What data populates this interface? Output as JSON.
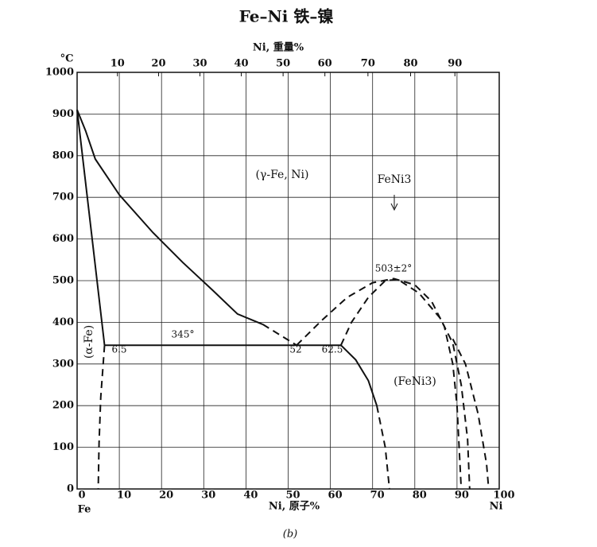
{
  "chart_data": {
    "type": "line",
    "title": "Fe–Ni 铁–镍",
    "x_label": "Ni, 原子%",
    "x2_label": "Ni, 重量%",
    "y_label": "°C",
    "x_end_labels": [
      "Fe",
      "Ni"
    ],
    "caption": "(b)",
    "annotations": [
      "(γ-Fe, Ni)",
      "FeNi3",
      "(FeNi3)",
      "(α-Fe)",
      "345°",
      "6.5",
      "52",
      "62.5",
      "503±2°"
    ],
    "xlim": [
      0,
      100
    ],
    "ylim": [
      0,
      1000
    ],
    "xticks": [
      0,
      10,
      20,
      30,
      40,
      50,
      60,
      70,
      80,
      90,
      100
    ],
    "yticks": [
      0,
      100,
      200,
      300,
      400,
      500,
      600,
      700,
      800,
      900,
      1000
    ],
    "x2ticks": [
      {
        "value": 9.56,
        "label": "10"
      },
      {
        "value": 19.3,
        "label": "20"
      },
      {
        "value": 29.1,
        "label": "30"
      },
      {
        "value": 38.9,
        "label": "40"
      },
      {
        "value": 48.8,
        "label": "50"
      },
      {
        "value": 58.7,
        "label": "60"
      },
      {
        "value": 68.9,
        "label": "70"
      },
      {
        "value": 79.0,
        "label": "80"
      },
      {
        "value": 89.5,
        "label": "90"
      }
    ],
    "grid": true,
    "series": [
      {
        "color": "#111",
        "style": "solid",
        "x": [
          0,
          2,
          4.3,
          10,
          18,
          25,
          32,
          38,
          44
        ],
        "values": [
          910,
          860,
          792,
          706,
          615,
          544,
          478,
          420,
          395
        ]
      },
      {
        "color": "#111",
        "style": "dashed",
        "x": [
          44,
          48,
          52
        ],
        "values": [
          395,
          370,
          345
        ]
      },
      {
        "color": "#111",
        "style": "solid",
        "x": [
          0,
          6.5
        ],
        "values": [
          910,
          345
        ]
      },
      {
        "color": "#111",
        "style": "solid",
        "x": [
          6.5,
          62.5
        ],
        "values": [
          345,
          345
        ]
      },
      {
        "color": "#111",
        "style": "dashed",
        "x": [
          6.5,
          5.6,
          5.2,
          5
        ],
        "values": [
          345,
          220,
          110,
          0
        ]
      },
      {
        "color": "#111",
        "style": "solid",
        "x": [
          62.5,
          66,
          69,
          71
        ],
        "values": [
          345,
          310,
          260,
          200
        ]
      },
      {
        "color": "#111",
        "style": "dashed",
        "x": [
          71,
          73,
          74
        ],
        "values": [
          200,
          100,
          0
        ]
      },
      {
        "color": "#111",
        "style": "dashed",
        "x": [
          52,
          58,
          64,
          70,
          75,
          80,
          84,
          87,
          89,
          90,
          91
        ],
        "values": [
          345,
          405,
          460,
          495,
          505,
          490,
          450,
          390,
          300,
          200,
          0
        ]
      },
      {
        "color": "#111",
        "style": "dashed",
        "x": [
          62.5,
          65,
          69,
          73,
          76,
          81,
          86,
          89,
          91,
          92.5,
          93
        ],
        "values": [
          345,
          400,
          460,
          500,
          503,
          470,
          410,
          350,
          250,
          120,
          0
        ]
      },
      {
        "color": "#111",
        "style": "dashed",
        "x": [
          89,
          92,
          95,
          97,
          97.5
        ],
        "values": [
          360,
          300,
          180,
          60,
          0
        ]
      }
    ]
  }
}
